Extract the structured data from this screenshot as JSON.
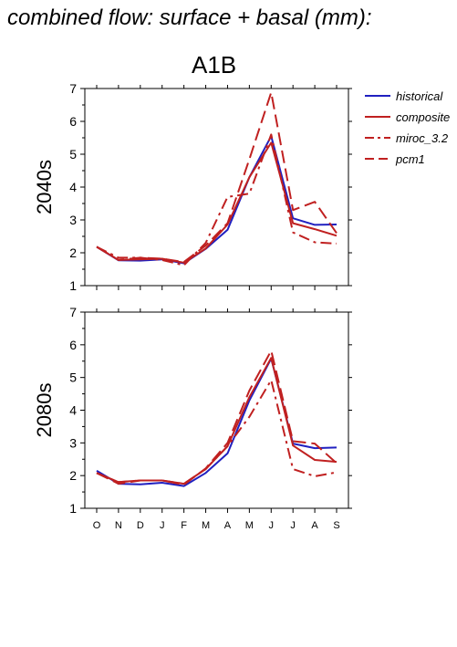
{
  "page": {
    "title": "combined flow: surface + basal (mm):",
    "scenario": "A1B"
  },
  "colors": {
    "historical": "#2020c0",
    "composite": "#c02020",
    "miroc_3.2": "#c02020",
    "pcm1": "#c02020"
  },
  "chart_data": [
    {
      "type": "line",
      "panel_label": "2040s",
      "categories": [
        "O",
        "N",
        "D",
        "J",
        "F",
        "M",
        "A",
        "M",
        "J",
        "J",
        "A",
        "S"
      ],
      "ylim": [
        1,
        7
      ],
      "yticks": [
        "1",
        "2",
        "3",
        "4",
        "5",
        "6",
        "7"
      ],
      "xlabel": "",
      "ylabel": "",
      "legend_position": "top-right outside",
      "series": [
        {
          "name": "historical",
          "style": "solid",
          "color": "#2020c0",
          "values": [
            2.18,
            1.77,
            1.76,
            1.8,
            1.68,
            2.12,
            2.7,
            4.3,
            5.55,
            3.05,
            2.85,
            2.86
          ]
        },
        {
          "name": "composite",
          "style": "solid",
          "color": "#c02020",
          "values": [
            2.18,
            1.78,
            1.8,
            1.82,
            1.7,
            2.13,
            2.86,
            4.3,
            5.35,
            2.9,
            2.72,
            2.52
          ]
        },
        {
          "name": "miroc_3.2",
          "style": "dashdot",
          "color": "#c02020",
          "values": [
            2.18,
            1.85,
            1.85,
            1.78,
            1.62,
            2.3,
            3.7,
            3.8,
            5.6,
            2.62,
            2.32,
            2.28
          ]
        },
        {
          "name": "pcm1",
          "style": "dashed",
          "color": "#c02020",
          "values": [
            2.18,
            1.78,
            1.85,
            1.82,
            1.72,
            2.22,
            2.9,
            4.85,
            6.88,
            3.3,
            3.55,
            2.6
          ]
        }
      ]
    },
    {
      "type": "line",
      "panel_label": "2080s",
      "categories": [
        "O",
        "N",
        "D",
        "J",
        "F",
        "M",
        "A",
        "M",
        "J",
        "J",
        "A",
        "S"
      ],
      "ylim": [
        1,
        7
      ],
      "yticks": [
        "1",
        "2",
        "3",
        "4",
        "5",
        "6",
        "7"
      ],
      "xlabel": "",
      "ylabel": "",
      "series": [
        {
          "name": "historical",
          "style": "solid",
          "color": "#2020c0",
          "values": [
            2.15,
            1.75,
            1.73,
            1.78,
            1.68,
            2.08,
            2.68,
            4.3,
            5.58,
            2.98,
            2.84,
            2.86
          ]
        },
        {
          "name": "composite",
          "style": "solid",
          "color": "#c02020",
          "values": [
            2.08,
            1.8,
            1.85,
            1.85,
            1.75,
            2.2,
            2.9,
            4.4,
            5.6,
            2.92,
            2.48,
            2.42
          ]
        },
        {
          "name": "miroc_3.2",
          "style": "dashdot",
          "color": "#c02020",
          "values": [
            2.08,
            1.8,
            1.85,
            1.85,
            1.75,
            2.2,
            2.9,
            3.8,
            4.92,
            2.2,
            1.98,
            2.1
          ]
        },
        {
          "name": "pcm1",
          "style": "dashed",
          "color": "#c02020",
          "values": [
            2.08,
            1.75,
            1.85,
            1.85,
            1.72,
            2.22,
            3.0,
            4.6,
            5.82,
            3.05,
            2.98,
            2.38
          ]
        }
      ]
    }
  ]
}
